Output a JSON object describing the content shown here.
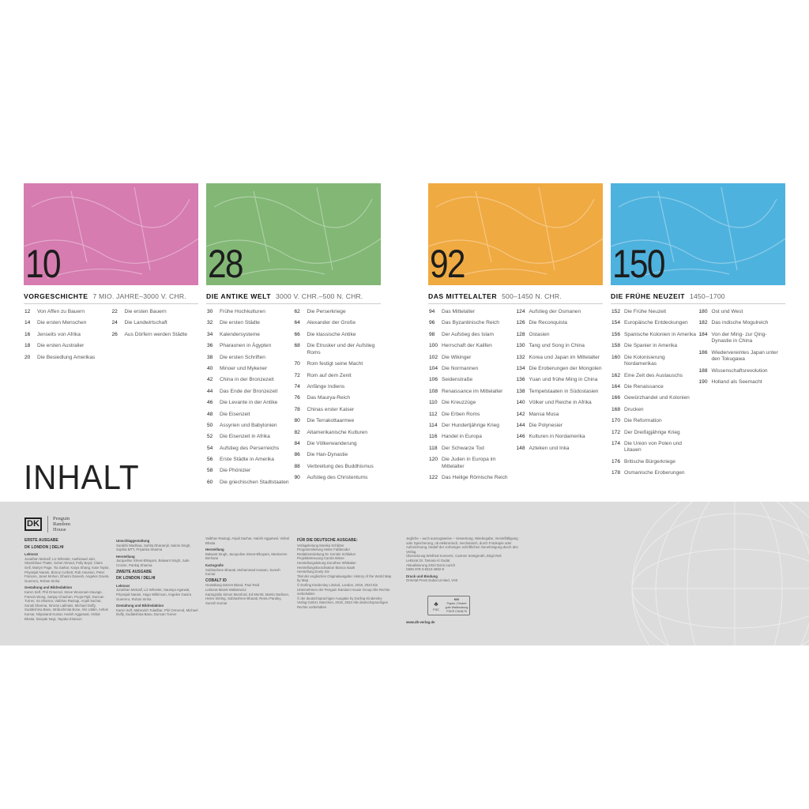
{
  "title": "INHALT",
  "sections": [
    {
      "page": "10",
      "name": "VORGESCHICHTE",
      "range": "7 MIO. JAHRE–3000 V. CHR.",
      "color": "#d67cb0",
      "cols": [
        [
          [
            "12",
            "Von Affen zu Bauern"
          ],
          [
            "14",
            "Die ersten Menschen"
          ],
          [
            "16",
            "Jenseits von Afrika"
          ],
          [
            "18",
            "Die ersten Australier"
          ],
          [
            "20",
            "Die Besiedlung Amerikas"
          ]
        ],
        [
          [
            "22",
            "Die ersten Bauern"
          ],
          [
            "24",
            "Die Landwirtschaft"
          ],
          [
            "26",
            "Aus Dörfern werden Städte"
          ]
        ]
      ]
    },
    {
      "page": "28",
      "name": "DIE ANTIKE WELT",
      "range": "3000 V. CHR.–500 N. CHR.",
      "color": "#82b775",
      "cols": [
        [
          [
            "30",
            "Frühe Hochkulturen"
          ],
          [
            "32",
            "Die ersten Städte"
          ],
          [
            "34",
            "Kalendersysteme"
          ],
          [
            "36",
            "Pharaonen in Ägypten"
          ],
          [
            "38",
            "Die ersten Schriften"
          ],
          [
            "40",
            "Minoer und Mykener"
          ],
          [
            "42",
            "China in der Bronzezeit"
          ],
          [
            "44",
            "Das Ende der Bronzezeit"
          ],
          [
            "46",
            "Die Levante in der Antike"
          ],
          [
            "48",
            "Die Eisenzeit"
          ],
          [
            "50",
            "Assyrien und Babylonien"
          ],
          [
            "52",
            "Die Eisenzeit in Afrika"
          ],
          [
            "54",
            "Aufstieg des Perserreichs"
          ],
          [
            "56",
            "Erste Städte in Amerika"
          ],
          [
            "58",
            "Die Phönizier"
          ],
          [
            "60",
            "Die griechischen Stadtstaaten"
          ]
        ],
        [
          [
            "62",
            "Die Perserkriege"
          ],
          [
            "64",
            "Alexander der Große"
          ],
          [
            "66",
            "Die klassische Antike"
          ],
          [
            "68",
            "Die Etrusker und der Aufstieg Roms"
          ],
          [
            "70",
            "Rom festigt seine Macht"
          ],
          [
            "72",
            "Rom auf dem Zenit"
          ],
          [
            "74",
            "Anfänge Indiens"
          ],
          [
            "76",
            "Das Maurya-Reich"
          ],
          [
            "78",
            "Chinas erster Kaiser"
          ],
          [
            "80",
            "Die Terrakottaarmee"
          ],
          [
            "82",
            "Altamerikanische Kulturen"
          ],
          [
            "84",
            "Die Völkerwanderung"
          ],
          [
            "86",
            "Die Han-Dynastie"
          ],
          [
            "88",
            "Verbreitung des Buddhismus"
          ],
          [
            "90",
            "Aufstieg des Christentums"
          ]
        ]
      ]
    },
    {
      "page": "92",
      "name": "DAS MITTELALTER",
      "range": "500–1450 N. CHR.",
      "color": "#f0aa42",
      "cols": [
        [
          [
            "94",
            "Das Mittelalter"
          ],
          [
            "96",
            "Das Byzantinische Reich"
          ],
          [
            "98",
            "Der Aufstieg des Islam"
          ],
          [
            "100",
            "Herrschaft der Kalifen"
          ],
          [
            "102",
            "Die Wikinger"
          ],
          [
            "104",
            "Die Normannen"
          ],
          [
            "106",
            "Seidenstraße"
          ],
          [
            "108",
            "Renaissance im Mittelalter"
          ],
          [
            "110",
            "Die Kreuzzüge"
          ],
          [
            "112",
            "Die Erben Roms"
          ],
          [
            "114",
            "Der Hundertjährige Krieg"
          ],
          [
            "116",
            "Handel in Europa"
          ],
          [
            "118",
            "Der Schwarze Tod"
          ],
          [
            "120",
            "Die Juden in Europa im Mittelalter"
          ],
          [
            "122",
            "Das Heilige Römische Reich"
          ]
        ],
        [
          [
            "124",
            "Aufstieg der Osmanen"
          ],
          [
            "126",
            "Die Reconquista"
          ],
          [
            "128",
            "Ostasien"
          ],
          [
            "130",
            "Tang und Song in China"
          ],
          [
            "132",
            "Korea und Japan im Mittelalter"
          ],
          [
            "134",
            "Die Eroberungen der Mongolen"
          ],
          [
            "136",
            "Yuan und frühe Ming in China"
          ],
          [
            "138",
            "Tempelstaaten in Südostasien"
          ],
          [
            "140",
            "Völker und Reiche in Afrika"
          ],
          [
            "142",
            "Mansa Musa"
          ],
          [
            "144",
            "Die Polynesier"
          ],
          [
            "146",
            "Kulturen in Nordamerika"
          ],
          [
            "148",
            "Azteken und Inka"
          ]
        ]
      ]
    },
    {
      "page": "150",
      "name": "DIE FRÜHE NEUZEIT",
      "range": "1450–1700",
      "color": "#4eb2de",
      "cols": [
        [
          [
            "152",
            "Die Frühe Neuzeit"
          ],
          [
            "154",
            "Europäische Entdeckungen"
          ],
          [
            "156",
            "Spanische Kolonien in Amerika"
          ],
          [
            "158",
            "Die Spanier in Amerika"
          ],
          [
            "160",
            "Die Kolonisierung Nordamerikas"
          ],
          [
            "162",
            "Eine Zeit des Austauschs"
          ],
          [
            "164",
            "Die Renaissance"
          ],
          [
            "166",
            "Gewürzhandel und Kolonien"
          ],
          [
            "168",
            "Drucken"
          ],
          [
            "170",
            "Die Reformation"
          ],
          [
            "172",
            "Der Dreißigjährige Krieg"
          ],
          [
            "174",
            "Die Union von Polen und Litauen"
          ],
          [
            "176",
            "Britische Bürgerkriege"
          ],
          [
            "178",
            "Osmanische Eroberungen"
          ]
        ],
        [
          [
            "180",
            "Ost und West"
          ],
          [
            "182",
            "Das indische Mogulreich"
          ],
          [
            "184",
            "Von der Ming- zur Qing-Dynastie in China"
          ],
          [
            "186",
            "Wiedervereintes Japan unter den Tokugawa"
          ],
          [
            "188",
            "Wissenschaftsrevolution"
          ],
          [
            "190",
            "Holland als Seemacht"
          ]
        ]
      ]
    }
  ],
  "imprint": {
    "logo_dk": "DK",
    "logo_prh": "Penguin Random House",
    "col1": [
      [
        "h",
        "ERSTE AUSGABE"
      ],
      [
        "h",
        "DK LONDON | DELHI"
      ],
      [
        "l",
        "Lektorat"
      ],
      [
        "t",
        "Jonathan Metcalf, Liz Wheeler, Aashirwad Jain, Shambhavi Thatte, Suhel Ahmed, Polly Boyd, Claire Gell, Martyn Page, Tia Sarkar, Kaiya Shang, Kate Taylor, Priyanjali Narain, Briony Corbett, Rob Houston, Peter Frances, Janet Mohun, Dharini Ganesh, Angeles Gavira Guerrero, Rohan Sinha"
      ],
      [
        "l",
        "Gestaltung und Bildredaktion"
      ],
      [
        "t",
        "Karen Self, Phil Ormerod, Steve Woosnam-Savage, Francis Wong, Sanjay Chauhan, Pooja Pipil, Duncan Turner, Ira Sharma, Vaibhav Rastogi, Anjali Sachar, Sonali Sharma, Simran Lakhiani, Michael Duffy, Sudakshina Basu, Mridushmita Bose, Alis Uddin, Ashok Kumar, Nityanand Kumar, Harish Aggarwal, Vishal Bhatia, Deepak Negi, Tayaba Khatoon"
      ]
    ],
    "col2": [
      [
        "l",
        "Umschlaggestaltung"
      ],
      [
        "t",
        "Surabhi Wadhwa, Suhita Dharamjit, Saloni Singh, Sophia MTT, Priyanka Sharma"
      ],
      [
        "l",
        "Herstellung"
      ],
      [
        "t",
        "Jacqueline Street-Elkayam, Balwant Singh, Jude Crozier, Pankaj Sharma"
      ],
      [
        "h",
        "ZWEITE AUSGABE"
      ],
      [
        "h",
        "DK LONDON / DELHI"
      ],
      [
        "l",
        "Lektorat"
      ],
      [
        "t",
        "Jonathan Metcalf, Liz Wheeler, Saumya Agarwal, Priyanjali Narain, Hugo Wilkinson, Angeles Gavira Guerrero, Rohan Sinha"
      ],
      [
        "l",
        "Gestaltung und Bildredaktion"
      ],
      [
        "t",
        "Karen Self, Mahevish Tuladhar, Phil Ormerod, Michael Duffy, Sudakshina Basu, Duncan Turner"
      ]
    ],
    "col3": [
      [
        "t",
        "Vaibhav Rastogi, Anjali Sachar, Harish Aggarwal, Vishal Bhatia"
      ],
      [
        "l",
        "Herstellung"
      ],
      [
        "t",
        "Balwant Singh, Jacqueline Street-Elkayam, Meskerem Berhane"
      ],
      [
        "l",
        "Kartografie"
      ],
      [
        "t",
        "Subhashree Bharati, Mohammad Hassan, Suresh Kumar"
      ],
      [
        "h",
        "COBALT ID"
      ],
      [
        "t",
        "Gestaltung Darren Bland, Paul Reid"
      ],
      [
        "t",
        "Lektorat Marek Walisiewicz"
      ],
      [
        "t",
        "Kartografie Simon Mumford, Ed Merritt, Martin Darlison, Helen Stirling, Subhashree Bharati, Reetu Pandey, Suresh Kumar"
      ]
    ],
    "col4": [
      [
        "h",
        "FÜR DIE DEUTSCHE AUSGABE:"
      ],
      [
        "t",
        "Verlagsleitung Monika Schlitzer"
      ],
      [
        "t",
        "Programmleitung Heike Faßbender"
      ],
      [
        "t",
        "Redaktionsleitung Dr. Kerstin Schlieker"
      ],
      [
        "t",
        "Projektbetreuung Carola Wiese"
      ],
      [
        "t",
        "Herstellungsleitung Dorothee Whittaker"
      ],
      [
        "t",
        "Herstellungskoordination Bianca Isaak"
      ],
      [
        "t",
        "Herstellung Evely Xie"
      ],
      [
        "t",
        "Titel der englischen Originalausgabe: History of the World Map by Map"
      ],
      [
        "t",
        "© Dorling Kindersley Limited, London, 2018, 2023 Ein Unternehmen der Penguin Random House Group Alle Rechte vorbehalten"
      ],
      [
        "t",
        "© der deutschsprachigen Ausgabe by Dorling Kindersley Verlag GmbH, München, 2019, 2024 Alle deutschsprachigen Rechte vorbehalten"
      ]
    ],
    "col5": [
      [
        "t",
        "Jegliche – auch auszugsweise – Verwertung, Wiedergabe, Vervielfältigung oder Speicherung, ob elektronisch, mechanisch, durch Fotokopie oder Aufzeichnung, bedarf der vorherigen schriftlichen Genehmigung durch den Verlag."
      ],
      [
        "t",
        "Übersetzung Winfried Konnertz, Carmen Söntgerath, Birgit Reit"
      ],
      [
        "t",
        "Lektorat Dr. Tamara Al Oudat"
      ],
      [
        "t",
        "Aktualisierung 2024 Doris Aurich"
      ],
      [
        "t",
        "ISBN 978-3-8310-4992-9"
      ],
      [
        "l",
        "Druck und Bindung"
      ],
      [
        "t",
        "Oriental Press Dubai Limited, VAE"
      ]
    ],
    "fsc": {
      "label": "FSC",
      "mix": "MIX",
      "sub": "Papier | Fördert gute Waldnutzung",
      "code": "FSC® C018179"
    },
    "url": "www.dk-verlag.de"
  }
}
